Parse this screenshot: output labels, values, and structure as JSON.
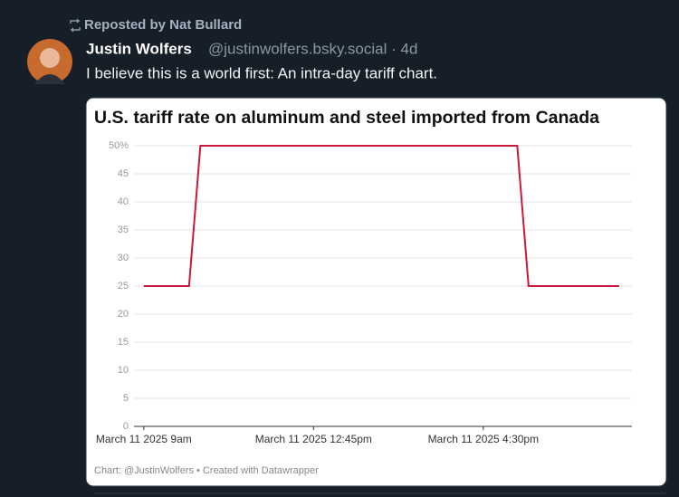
{
  "repost": "Reposted by Nat Bullard",
  "post": {
    "author": "Justin Wolfers",
    "meta": "@justinwolfers.bsky.social · 4d",
    "text": "I believe this is a world first: An intra-day tariff chart."
  },
  "chart_data": {
    "type": "line",
    "title": "U.S. tariff rate on aluminum and steel imported from Canada",
    "footer": "Chart: @JustinWolfers • Created with Datawrapper",
    "x": [
      "2025-03-11T09:00",
      "2025-03-11T10:00",
      "2025-03-11T10:15",
      "2025-03-11T17:15",
      "2025-03-11T17:30",
      "2025-03-11T19:30"
    ],
    "series": [
      {
        "name": "Tariff rate",
        "color": "#c8193c",
        "values": [
          25,
          25,
          50,
          50,
          25,
          25
        ]
      }
    ],
    "xlim": [
      "2025-03-11T08:47",
      "2025-03-11T19:47"
    ],
    "xticks": [
      {
        "value": "2025-03-11T09:00",
        "label": "March 11 2025 9am"
      },
      {
        "value": "2025-03-11T12:45",
        "label": "March 11 2025 12:45pm"
      },
      {
        "value": "2025-03-11T16:30",
        "label": "March 11 2025 4:30pm"
      }
    ],
    "ylim": [
      0,
      50
    ],
    "yticks": [
      0,
      5,
      10,
      15,
      20,
      25,
      30,
      35,
      40,
      45,
      {
        "value": 50,
        "label": "50%"
      }
    ],
    "grid": true
  }
}
